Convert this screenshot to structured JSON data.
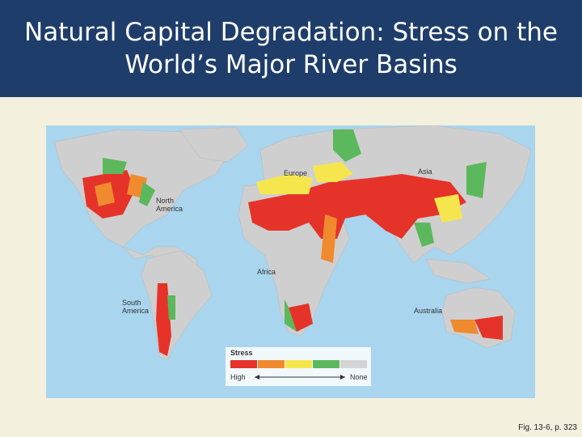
{
  "header": {
    "title": "Natural Capital Degradation: Stress on the World’s Major River Basins"
  },
  "map": {
    "labels": [
      {
        "text": "Europe"
      },
      {
        "text": "Asia"
      },
      {
        "text": "North America"
      },
      {
        "text": "Africa"
      },
      {
        "text": "South America"
      },
      {
        "text": "Australia"
      }
    ]
  },
  "legend": {
    "title": "Stress",
    "start_label": "High",
    "end_label": "None",
    "colors": [
      "#e5332a",
      "#f08a2e",
      "#f6e64e",
      "#5cb85c",
      "#d4d4d4"
    ]
  },
  "caption": "Fig. 13-6, p. 323"
}
